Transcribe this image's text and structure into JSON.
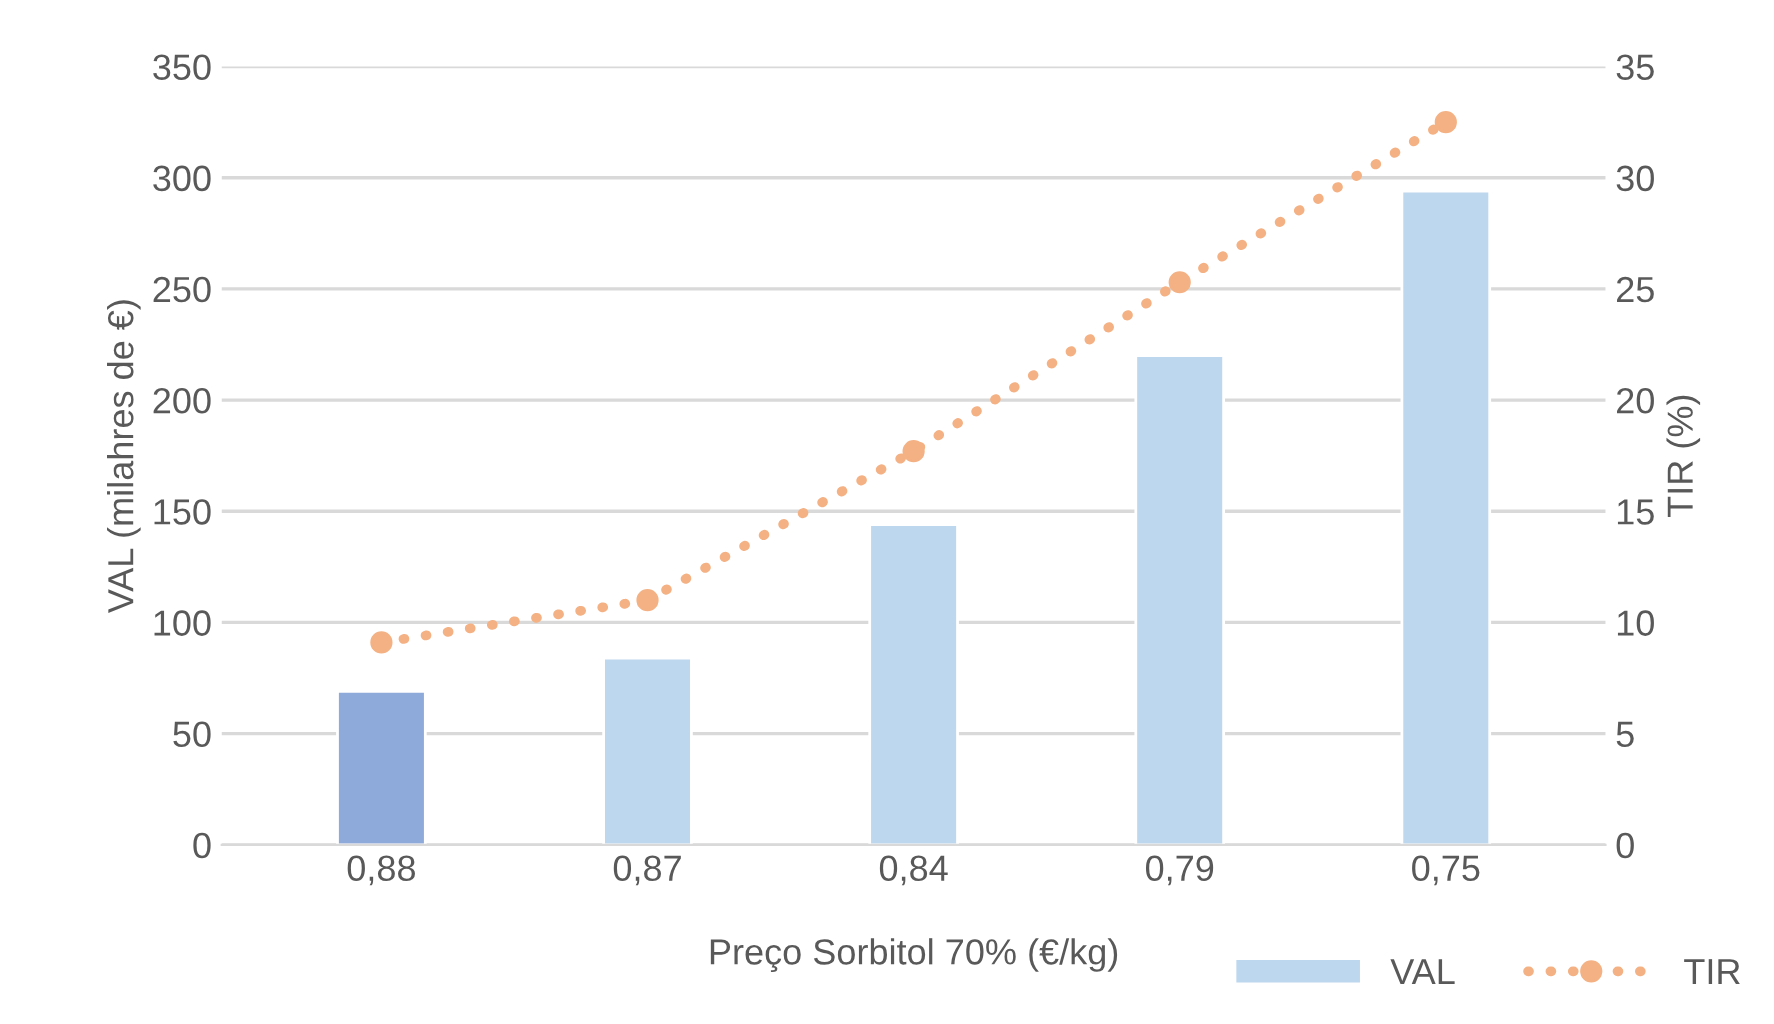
{
  "chart_data": {
    "type": "bar",
    "categories": [
      "0,88",
      "0,87",
      "0,84",
      "0,79",
      "0,75"
    ],
    "xlabel": "Preço Sorbitol 70% (€/kg)",
    "ylabel": "VAL (milahres de €)",
    "y2label": "TIR (%)",
    "series": [
      {
        "name": "VAL",
        "color": "#bdd7ee",
        "colors": [
          "#8eaadb",
          "#bdd7ee",
          "#bdd7ee",
          "#bdd7ee",
          "#bdd7ee"
        ],
        "values": [
          69,
          84,
          144,
          220,
          294
        ]
      },
      {
        "name": "TIR",
        "type": "line",
        "axis": "y2",
        "color": "#f4b183",
        "marker": "circle",
        "line_style": "dotted",
        "values": [
          9.1,
          11.0,
          17.7,
          25.3,
          32.5
        ]
      }
    ],
    "ylim": [
      0,
      350
    ],
    "yticks": [
      0,
      50,
      100,
      150,
      200,
      250,
      300,
      350
    ],
    "y2lim": [
      0,
      35
    ],
    "y2ticks": [
      0,
      5,
      10,
      15,
      20,
      25,
      30,
      35
    ],
    "grid": "y",
    "legend": "bottom right"
  }
}
